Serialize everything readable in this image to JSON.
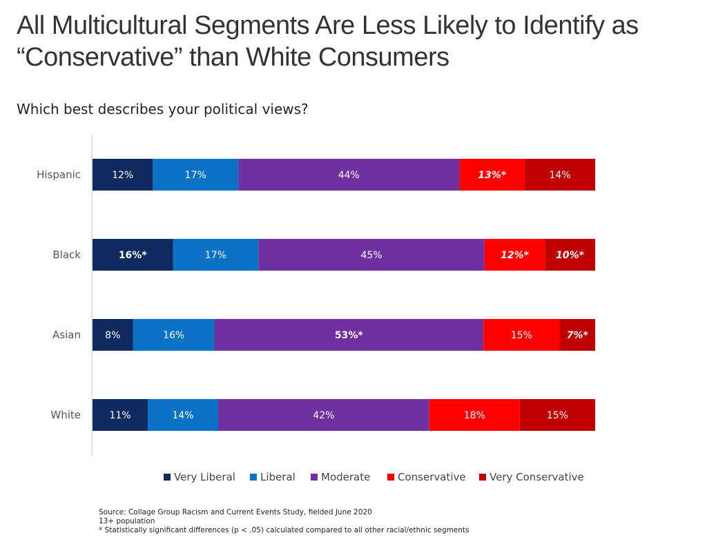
{
  "title": "All Multicultural Segments Are Less Likely to Identify as “Conservative” than White Consumers",
  "subtitle": "Which best describes your political views?",
  "notes": [
    "Source: Collage Group Racism and Current Events Study, fielded June 2020",
    "13+ population",
    "* Statistically significant differences (p < .05) calculated compared to all other racial/ethnic segments"
  ],
  "chart_data": {
    "type": "bar",
    "orientation": "horizontal",
    "stacked": true,
    "categories": [
      "Hispanic",
      "Black",
      "Asian",
      "White"
    ],
    "series": [
      {
        "name": "Very Liberal",
        "color": "#0e2a5e",
        "values": [
          12,
          16,
          8,
          11
        ],
        "labels": [
          "12%",
          "16%*",
          "8%",
          "11%"
        ],
        "highlight": [
          false,
          "bold",
          false,
          false
        ]
      },
      {
        "name": "Liberal",
        "color": "#0b72c6",
        "values": [
          17,
          17,
          16,
          14
        ],
        "labels": [
          "17%",
          "17%",
          "16%",
          "14%"
        ],
        "highlight": [
          false,
          false,
          false,
          false
        ]
      },
      {
        "name": "Moderate",
        "color": "#7030a0",
        "values": [
          44,
          45,
          53,
          42
        ],
        "labels": [
          "44%",
          "45%",
          "53%*",
          "42%"
        ],
        "highlight": [
          false,
          false,
          "bold",
          false
        ]
      },
      {
        "name": "Conservative",
        "color": "#ff0000",
        "values": [
          13,
          12,
          15,
          18
        ],
        "labels": [
          "13%*",
          "12%*",
          "15%",
          "18%"
        ],
        "highlight": [
          "bold-italic",
          "bold-italic",
          false,
          false
        ]
      },
      {
        "name": "Very Conservative",
        "color": "#c00000",
        "values": [
          14,
          10,
          7,
          15
        ],
        "labels": [
          "14%",
          "10%*",
          "7%*",
          "15%"
        ],
        "highlight": [
          false,
          "bold-italic",
          "bold-italic",
          false
        ]
      }
    ],
    "xlim": [
      0,
      100
    ],
    "grid": false,
    "legend_position": "bottom"
  }
}
